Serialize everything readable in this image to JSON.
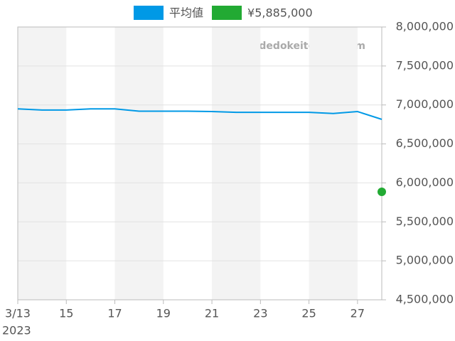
{
  "chart_data": {
    "type": "line",
    "watermark": "udedokeitoushi.com",
    "x": [
      "2023-03-13",
      "2023-03-14",
      "2023-03-15",
      "2023-03-16",
      "2023-03-17",
      "2023-03-18",
      "2023-03-19",
      "2023-03-20",
      "2023-03-21",
      "2023-03-22",
      "2023-03-23",
      "2023-03-24",
      "2023-03-25",
      "2023-03-26",
      "2023-03-27",
      "2023-03-28"
    ],
    "xlim": [
      "2023-03-13",
      "2023-03-28"
    ],
    "xticks": [
      {
        "value": "2023-03-13",
        "label": "3/13"
      },
      {
        "value": "2023-03-15",
        "label": "15"
      },
      {
        "value": "2023-03-17",
        "label": "17"
      },
      {
        "value": "2023-03-19",
        "label": "19"
      },
      {
        "value": "2023-03-21",
        "label": "21"
      },
      {
        "value": "2023-03-23",
        "label": "23"
      },
      {
        "value": "2023-03-25",
        "label": "25"
      },
      {
        "value": "2023-03-27",
        "label": "27"
      }
    ],
    "x_year_label": "2023",
    "ylim": [
      4500000,
      8000000
    ],
    "yticks": [
      {
        "value": 4500000,
        "label": "4,500,000"
      },
      {
        "value": 5000000,
        "label": "5,000,000"
      },
      {
        "value": 5500000,
        "label": "5,500,000"
      },
      {
        "value": 6000000,
        "label": "6,000,000"
      },
      {
        "value": 6500000,
        "label": "6,500,000"
      },
      {
        "value": 7000000,
        "label": "7,000,000"
      },
      {
        "value": 7500000,
        "label": "7,500,000"
      },
      {
        "value": 8000000,
        "label": "8,000,000"
      }
    ],
    "grid": true,
    "series": [
      {
        "name": "平均値",
        "color": "#0099e6",
        "type": "line",
        "values": [
          6950000,
          6935000,
          6935000,
          6950000,
          6950000,
          6920000,
          6920000,
          6920000,
          6915000,
          6905000,
          6905000,
          6905000,
          6905000,
          6890000,
          6915000,
          6815000
        ]
      },
      {
        "name": "¥5,885,000",
        "color": "#22aa33",
        "type": "scatter",
        "x": [
          "2023-03-28"
        ],
        "values": [
          5885000
        ]
      }
    ]
  }
}
